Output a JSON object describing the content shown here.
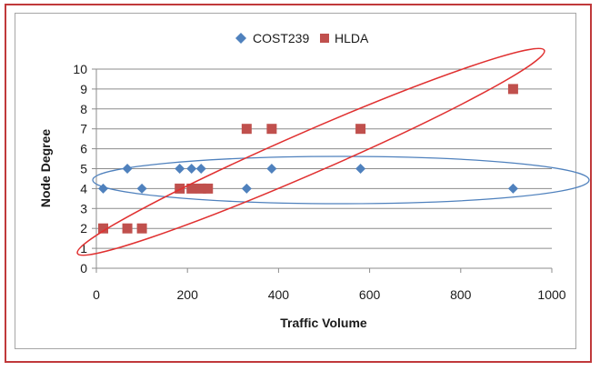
{
  "chart_data": {
    "type": "scatter",
    "xlabel": "Traffic Volume",
    "ylabel": "Node Degree",
    "xlim": [
      0,
      1000
    ],
    "ylim": [
      0,
      10
    ],
    "x_ticks": [
      0,
      200,
      400,
      600,
      800,
      1000
    ],
    "y_ticks": [
      0,
      1,
      2,
      3,
      4,
      5,
      6,
      7,
      8,
      9,
      10
    ],
    "grid": "horizontal",
    "legend": "top",
    "series": [
      {
        "name": "COST239",
        "marker": "diamond",
        "color": "#4f81bd",
        "points": [
          [
            15,
            4
          ],
          [
            68,
            5
          ],
          [
            100,
            4
          ],
          [
            183,
            5
          ],
          [
            209,
            5
          ],
          [
            230,
            5
          ],
          [
            330,
            4
          ],
          [
            385,
            5
          ],
          [
            580,
            5
          ],
          [
            915,
            4
          ]
        ]
      },
      {
        "name": "HLDA",
        "marker": "square",
        "color": "#c0504d",
        "points": [
          [
            15,
            2
          ],
          [
            68,
            2
          ],
          [
            100,
            2
          ],
          [
            183,
            4
          ],
          [
            209,
            4
          ],
          [
            230,
            4
          ],
          [
            245,
            4
          ],
          [
            330,
            7
          ],
          [
            385,
            7
          ],
          [
            580,
            7
          ],
          [
            915,
            9
          ]
        ]
      }
    ],
    "annotations": [
      {
        "shape": "ellipse",
        "color": "#4f81bd",
        "encloses": "COST239"
      },
      {
        "shape": "ellipse",
        "color": "#e03030",
        "encloses": "HLDA"
      }
    ]
  }
}
